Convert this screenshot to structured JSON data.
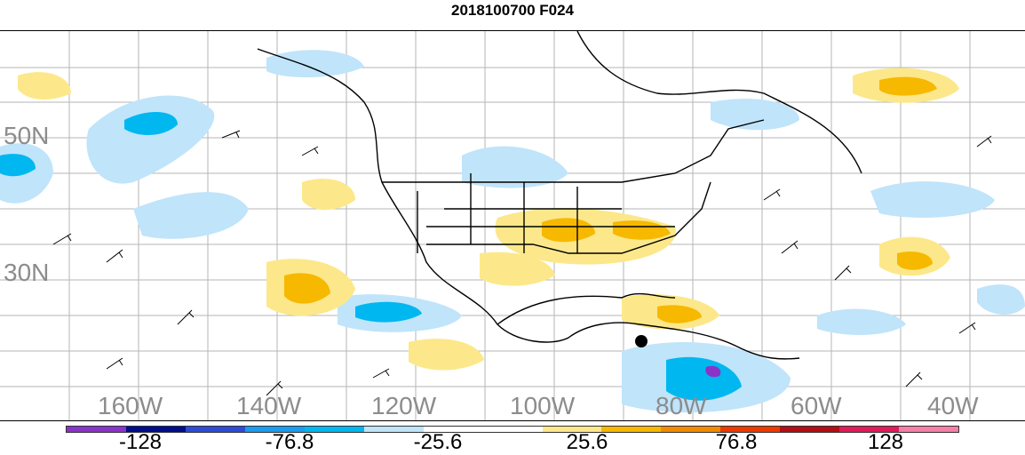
{
  "title": "2018100700 F024",
  "map": {
    "lon_labels": [
      "160W",
      "140W",
      "120W",
      "100W",
      "80W",
      "60W",
      "40W"
    ],
    "lat_labels": [
      "50N",
      "30N"
    ],
    "legend": {
      "colors": [
        "#8a33c9",
        "#000e8c",
        "#2e4bd6",
        "#1a9cf0",
        "#00b7f0",
        "#c0e4fa",
        "#ffffff",
        "#ffffff",
        "#fce88a",
        "#f7b800",
        "#f58a00",
        "#ee3a00",
        "#b40d14",
        "#e21a5a",
        "#f57fa8"
      ],
      "labels": [
        "-128",
        "-76.8",
        "-25.6",
        "25.6",
        "76.8",
        "128"
      ]
    }
  }
}
